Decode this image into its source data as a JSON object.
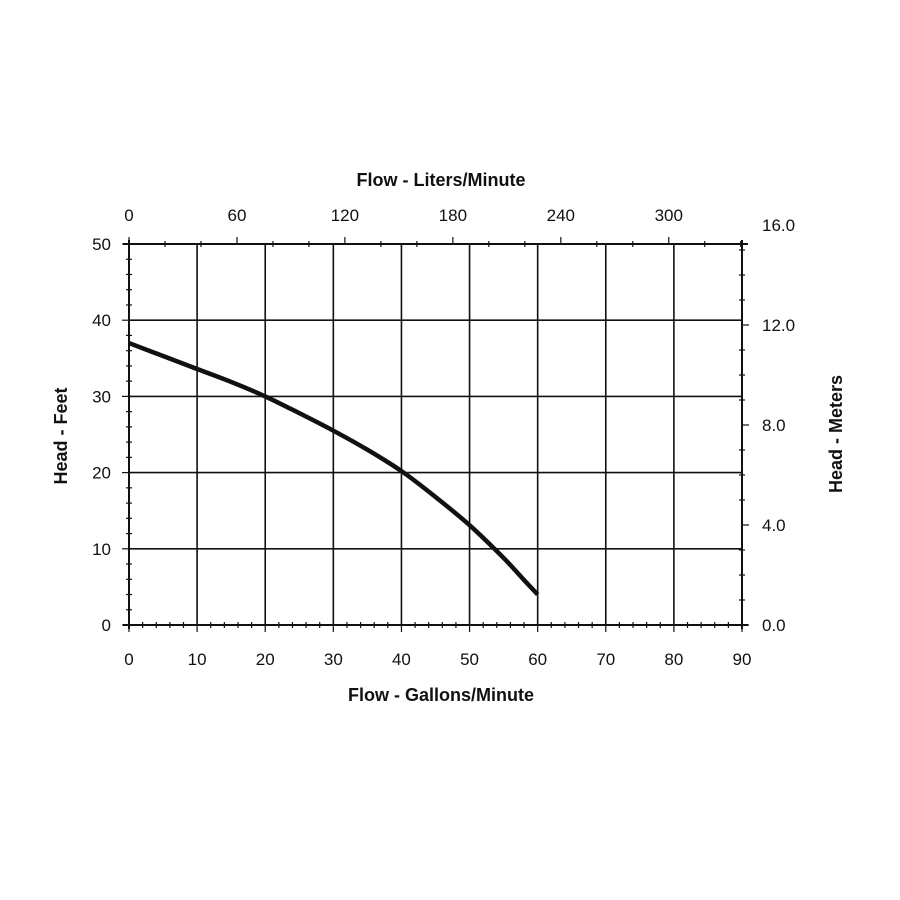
{
  "chart_data": {
    "type": "line",
    "title": "",
    "xlabel": "Flow - Gallons/Minute",
    "ylabel": "Head - Feet",
    "x2label": "Flow - Liters/Minute",
    "y2label": "Head - Meters",
    "xlim": [
      0,
      90
    ],
    "ylim": [
      0,
      50
    ],
    "x2lim": [
      0,
      340.7
    ],
    "y2lim": [
      0,
      15.24
    ],
    "x_ticks": [
      0,
      10,
      20,
      30,
      40,
      50,
      60,
      70,
      80,
      90
    ],
    "x_tick_labels": [
      "0",
      "10",
      "20",
      "30",
      "40",
      "50",
      "60",
      "70",
      "80",
      "90"
    ],
    "y_ticks": [
      0,
      10,
      20,
      30,
      40,
      50
    ],
    "y_tick_labels": [
      "0",
      "10",
      "20",
      "30",
      "40",
      "50"
    ],
    "x2_ticks": [
      0,
      60,
      120,
      180,
      240,
      300
    ],
    "x2_tick_labels": [
      "0",
      "60",
      "120",
      "180",
      "240",
      "300"
    ],
    "y2_ticks": [
      0,
      4,
      8,
      12,
      16
    ],
    "y2_tick_labels": [
      "0.0",
      "4.0",
      "8.0",
      "12.0",
      "16.0"
    ],
    "grid": true,
    "series": [
      {
        "x": [
          0,
          5,
          10,
          15,
          20,
          25,
          30,
          35,
          40,
          45,
          50,
          55,
          58,
          60
        ],
        "y": [
          37,
          35.3,
          33.6,
          31.9,
          30,
          27.8,
          25.5,
          23,
          20.2,
          16.8,
          13.1,
          8.8,
          5.9,
          4
        ],
        "color": "#111111"
      }
    ]
  }
}
